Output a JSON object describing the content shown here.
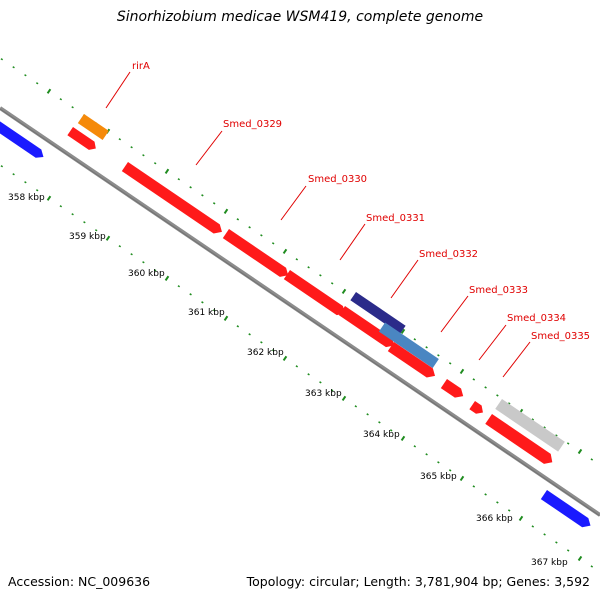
{
  "title": "Sinorhizobium medicae WSM419, complete genome",
  "accession": "Accession: NC_009636",
  "summary": "Topology: circular; Length: 3,781,904 bp; Genes: 3,592",
  "colors": {
    "backbone": "#8c8c8c",
    "tick": "#1f8c1f",
    "label": "#e00000",
    "gene_forward": "#ff1a1a",
    "rirA": "#f58a0a",
    "blue": "#1a1aff",
    "steel": "#4a86c2",
    "navy": "#2b2b8a",
    "grey": "#c9c9c9"
  },
  "kbp_labels": [
    "358 kbp",
    "359 kbp",
    "360 kbp",
    "361 kbp",
    "362 kbp",
    "363 kbp",
    "364 kbp",
    "365 kbp",
    "366 kbp",
    "367 kbp"
  ],
  "gene_labels": [
    "rirA",
    "Smed_0329",
    "Smed_0330",
    "Smed_0331",
    "Smed_0332",
    "Smed_0333",
    "Smed_0334",
    "Smed_0335"
  ]
}
